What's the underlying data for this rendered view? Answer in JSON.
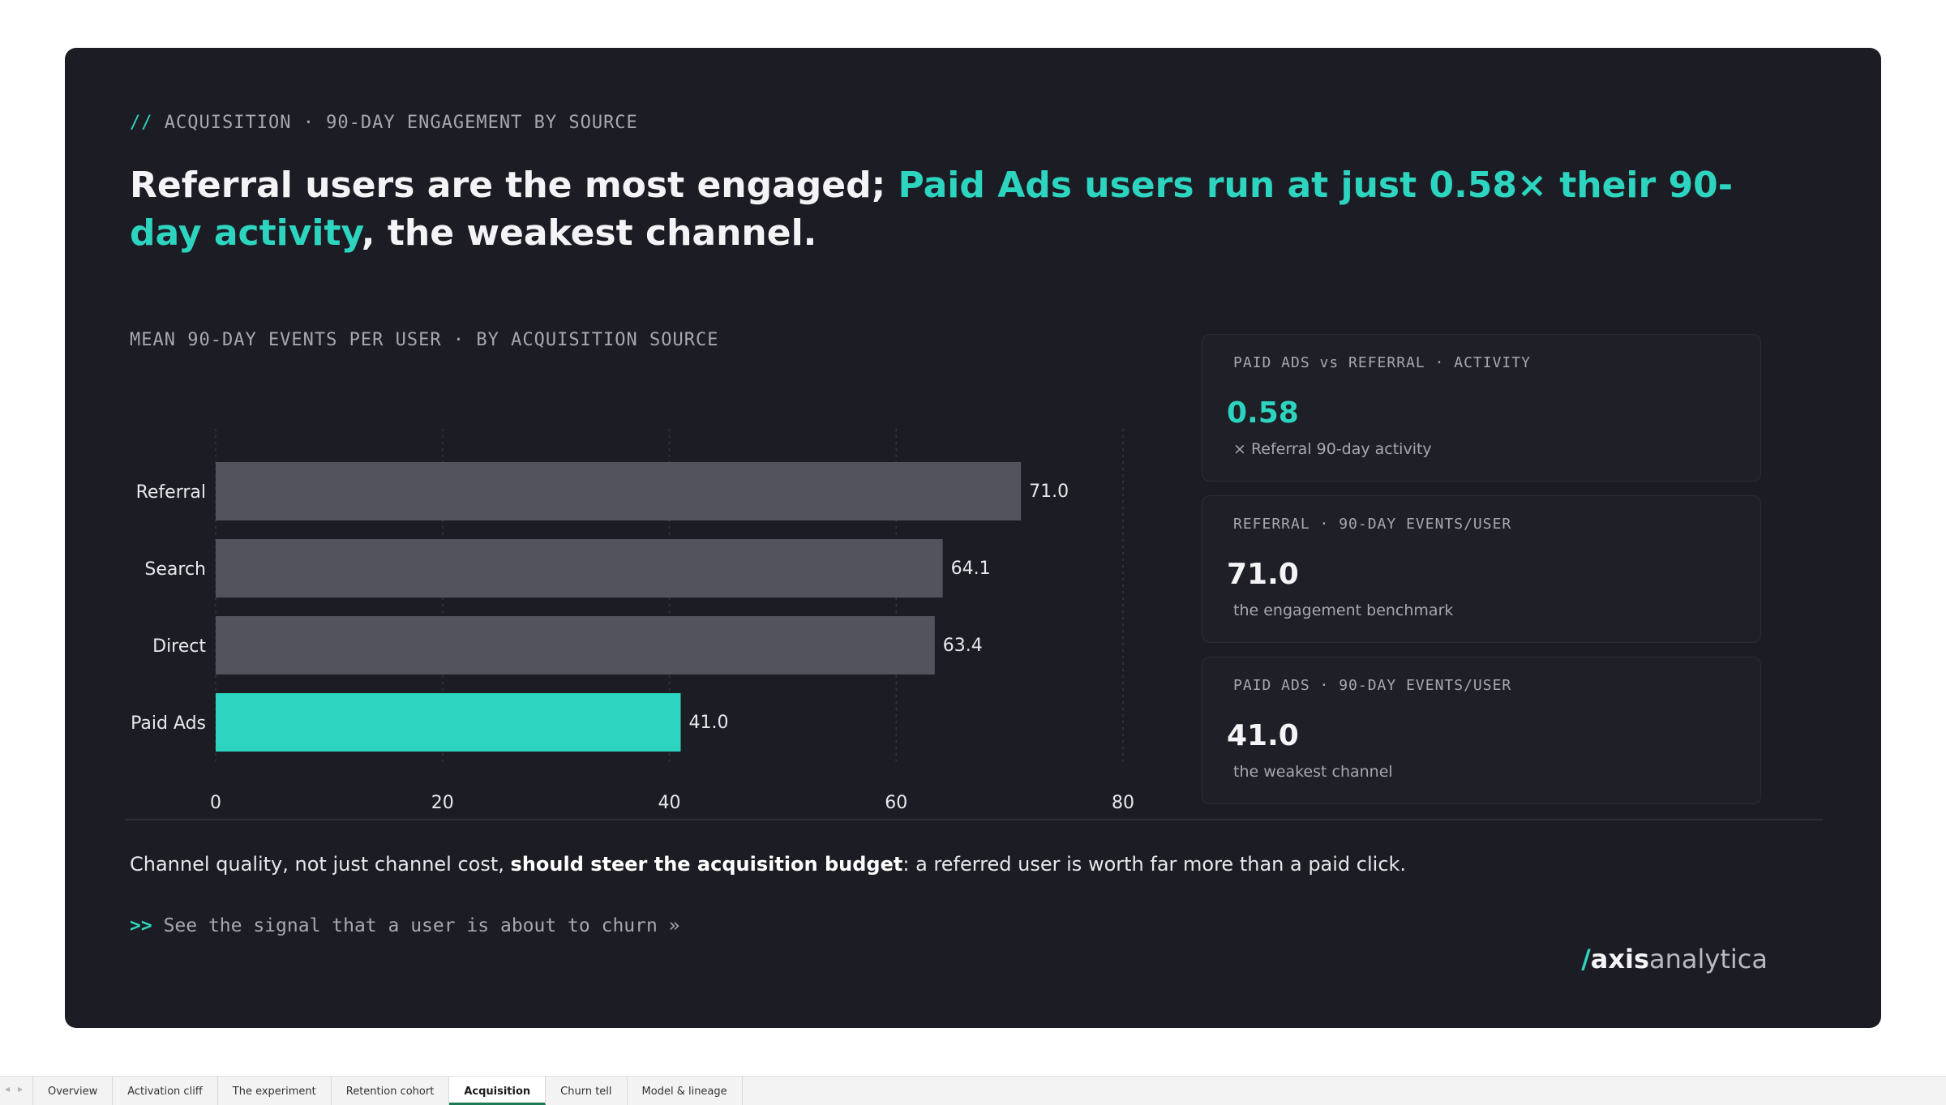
{
  "slide": {
    "eyebrow_slashes": "//",
    "eyebrow": "ACQUISITION · 90-DAY ENGAGEMENT BY SOURCE",
    "headline_part1": "Referral users are the most engaged; ",
    "headline_highlight": "Paid Ads users run at just 0.58× their 90-day activity",
    "headline_part2": ", the weakest channel.",
    "chart_title": "MEAN 90-DAY EVENTS PER USER · BY ACQUISITION SOURCE",
    "takeaway_part1": "Channel quality, not just channel cost, ",
    "takeaway_bold": "should steer the acquisition budget",
    "takeaway_part2": ": a referred user is worth far more than a paid click.",
    "next_arrows": ">>",
    "next_link": "See the signal that a user is about to churn »",
    "logo_slash": "/",
    "logo_strong": "axis",
    "logo_light": "analytica"
  },
  "stats": [
    {
      "label": "PAID ADS vs REFERRAL · ACTIVITY",
      "value": "0.58",
      "note": "× Referral 90-day activity"
    },
    {
      "label": "REFERRAL · 90-DAY EVENTS/USER",
      "value": "71.0",
      "note": "the engagement benchmark"
    },
    {
      "label": "PAID ADS · 90-DAY EVENTS/USER",
      "value": "41.0",
      "note": "the weakest channel"
    }
  ],
  "chart_data": {
    "type": "bar",
    "orientation": "horizontal",
    "title": "MEAN 90-DAY EVENTS PER USER · BY ACQUISITION SOURCE",
    "xlabel": "",
    "ylabel": "",
    "categories": [
      "Referral",
      "Search",
      "Direct",
      "Paid Ads"
    ],
    "values": [
      71.0,
      64.1,
      63.4,
      41.0
    ],
    "value_labels": [
      "71.0",
      "64.1",
      "63.4",
      "41.0"
    ],
    "highlight": "Paid Ads",
    "xlim": [
      0,
      80
    ],
    "ticks": [
      0,
      20,
      40,
      60,
      80
    ],
    "grid": true,
    "colors": {
      "default": "#53535d",
      "highlight": "#2dd4bf",
      "grid": "#34363e",
      "text": "#e8e8ec"
    }
  },
  "tabbar": {
    "prev": "◂",
    "next": "▸",
    "tabs": [
      "Overview",
      "Activation cliff",
      "The experiment",
      "Retention cohort",
      "Acquisition",
      "Churn tell",
      "Model & lineage"
    ],
    "active": 4
  }
}
